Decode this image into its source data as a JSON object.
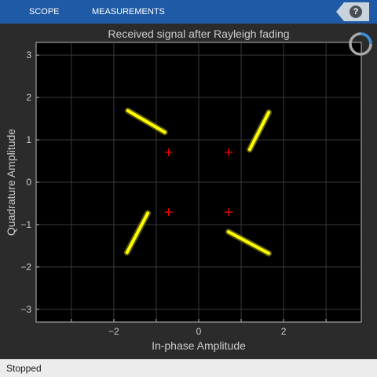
{
  "toolbar": {
    "tabs": [
      {
        "label": "SCOPE"
      },
      {
        "label": "MEASUREMENTS"
      }
    ],
    "help_label": "?",
    "accent_color": "#1f5aa6"
  },
  "status": {
    "text": "Stopped"
  },
  "busy_indicator": {
    "icon": "spinner-icon",
    "progress": 0.25
  },
  "chart_data": {
    "type": "scatter",
    "title": "Received signal after Rayleigh fading",
    "xlabel": "In-phase Amplitude",
    "ylabel": "Quadrature Amplitude",
    "xlim": [
      -3.83,
      3.83
    ],
    "ylim": [
      -3.3,
      3.3
    ],
    "x_ticks": [
      -2,
      0,
      2
    ],
    "y_ticks": [
      -3,
      -2,
      -1,
      0,
      1,
      2,
      3
    ],
    "grid": true,
    "background": "#000000",
    "axes_color": "#cccccc",
    "series": [
      {
        "marker": "dot",
        "color": "#ffff00",
        "segments": [
          {
            "from": [
              -1.67,
              1.69
            ],
            "to": [
              -0.8,
              1.18
            ]
          },
          {
            "from": [
              1.2,
              0.77
            ],
            "to": [
              1.65,
              1.65
            ]
          },
          {
            "from": [
              -1.69,
              -1.66
            ],
            "to": [
              -1.2,
              -0.73
            ]
          },
          {
            "from": [
              0.7,
              -1.17
            ],
            "to": [
              1.65,
              -1.68
            ]
          }
        ]
      },
      {
        "marker": "plus",
        "color": "#ff0000",
        "points": [
          [
            -0.707,
            0.707
          ],
          [
            0.707,
            0.707
          ],
          [
            -0.707,
            -0.707
          ],
          [
            0.707,
            -0.707
          ]
        ]
      }
    ]
  }
}
